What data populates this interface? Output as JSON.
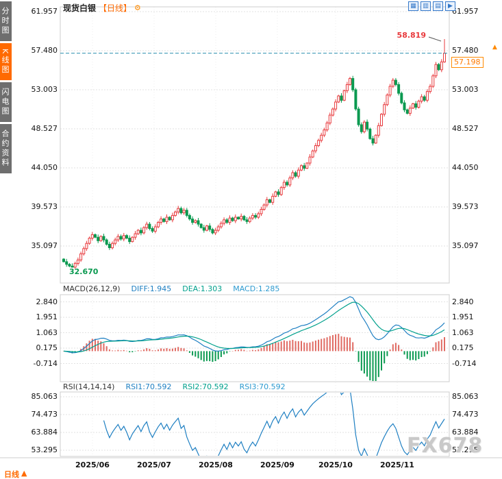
{
  "sidebar": {
    "items": [
      {
        "name": "time-chart",
        "label": "分时图",
        "active": false
      },
      {
        "name": "kline-chart",
        "label": "K线图",
        "active": true
      },
      {
        "name": "flash-chart",
        "label": "闪电图",
        "active": false
      },
      {
        "name": "contract-info",
        "label": "合约资料",
        "active": false
      }
    ]
  },
  "header": {
    "title": "现货白银",
    "period": "【日线】",
    "gear_icon": "⚙"
  },
  "toolbar": {
    "icons": [
      {
        "name": "grid-layout-icon",
        "glyph": "▦"
      },
      {
        "name": "candle-chart-icon",
        "glyph": "▥"
      },
      {
        "name": "line-chart-icon",
        "glyph": "▤"
      },
      {
        "name": "expand-chart-icon",
        "glyph": "▶"
      }
    ]
  },
  "annotations": {
    "high": "58.819",
    "low": "32.670"
  },
  "price_tag": {
    "value": "57.198",
    "arrow": "▲"
  },
  "macd_panel": {
    "label": "MACD(26,12,9)",
    "diff": "DIFF:1.945",
    "dea": "DEA:1.303",
    "macd": "MACD:1.285"
  },
  "rsi_panel": {
    "label": "RSI(14,14,14)",
    "rsi1": "RSI1:70.592",
    "rsi2": "RSI2:70.592",
    "rsi3": "RSI3:70.592"
  },
  "bottom_tab": {
    "label": "日线",
    "arrow": "▲"
  },
  "watermark": "FX678",
  "colors": {
    "up": "#e8393c",
    "down": "#0a9950",
    "accent": "#ff6a00",
    "diff_line": "#1e7fc2",
    "dea_line": "#00a08c",
    "rsi_line": "#1e7fc2",
    "price_line": "#2a8fae",
    "bar_up": "#e06a62"
  },
  "chart_data": {
    "type": "candlestick",
    "title": "现货白银 日线",
    "legend_position": "top-left",
    "grid": true,
    "price_axis_ticks": [
      "61.957",
      "57.480",
      "53.003",
      "48.527",
      "44.050",
      "39.573",
      "35.097"
    ],
    "macd_axis_ticks": [
      "2.840",
      "1.951",
      "1.063",
      "0.175",
      "-0.714"
    ],
    "rsi_axis_ticks": [
      "85.063",
      "74.473",
      "63.884",
      "53.295"
    ],
    "x_labels": [
      "2025/06",
      "2025/07",
      "2025/08",
      "2025/09",
      "2025/10",
      "2025/11"
    ],
    "price_range_shown": [
      35.097,
      61.957
    ],
    "last_close": 57.198,
    "high": 58.819,
    "low": 32.67,
    "macd": {
      "slow": 26,
      "fast": 12,
      "signal": 9,
      "diff": 1.945,
      "dea": 1.303,
      "macd": 1.285
    },
    "rsi": {
      "period": 14,
      "rsi1": 70.592,
      "rsi2": 70.592,
      "rsi3": 70.592
    },
    "closes": [
      33.3,
      33.0,
      32.8,
      32.67,
      33.1,
      33.5,
      34.2,
      34.8,
      35.4,
      36.0,
      36.4,
      36.1,
      35.7,
      36.2,
      35.8,
      35.3,
      34.9,
      35.4,
      35.8,
      36.2,
      35.9,
      36.3,
      36.0,
      35.6,
      36.1,
      36.5,
      36.9,
      36.6,
      37.2,
      37.6,
      37.1,
      36.8,
      37.3,
      37.8,
      38.2,
      37.9,
      38.4,
      38.1,
      38.6,
      39.0,
      39.4,
      38.9,
      39.2,
      38.6,
      38.2,
      37.8,
      38.0,
      37.6,
      37.2,
      36.9,
      37.4,
      37.0,
      36.6,
      36.9,
      37.3,
      37.7,
      38.1,
      37.8,
      38.3,
      38.0,
      38.4,
      38.2,
      38.5,
      38.1,
      37.9,
      38.3,
      38.6,
      38.4,
      38.8,
      39.3,
      39.8,
      40.4,
      40.1,
      40.8,
      41.3,
      41.0,
      41.8,
      42.4,
      42.1,
      42.9,
      43.5,
      43.1,
      43.8,
      44.3,
      44.0,
      44.6,
      45.3,
      46.0,
      46.6,
      47.2,
      47.8,
      48.4,
      49.2,
      50.1,
      50.8,
      51.6,
      52.3,
      51.8,
      52.9,
      53.6,
      54.3,
      53.0,
      50.8,
      49.0,
      48.2,
      49.3,
      48.5,
      47.4,
      46.9,
      47.8,
      48.9,
      50.2,
      51.3,
      52.4,
      53.4,
      54.1,
      53.6,
      52.6,
      51.5,
      50.7,
      50.3,
      50.9,
      51.4,
      51.0,
      51.7,
      52.2,
      51.8,
      52.8,
      53.4,
      54.6,
      55.9,
      55.3,
      56.2,
      57.198
    ]
  }
}
